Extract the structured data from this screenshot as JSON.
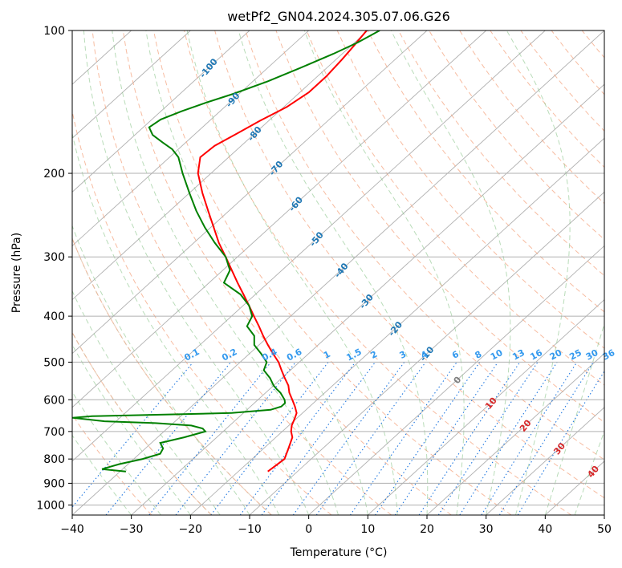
{
  "chart_data": {
    "type": "line",
    "subtype": "skew-t log-p diagram",
    "title": "wetPf2_GN04.2024.305.07.06.G26",
    "xlabel": "Temperature (°C)",
    "ylabel": "Pressure (hPa)",
    "xlim": [
      -40,
      50
    ],
    "ylim": [
      1050,
      100
    ],
    "y_scale": "log",
    "grid": true,
    "x_ticks": [
      -40,
      -30,
      -20,
      -10,
      0,
      10,
      20,
      30,
      40,
      50
    ],
    "y_ticks": [
      100,
      200,
      300,
      400,
      500,
      600,
      700,
      800,
      900,
      1000
    ],
    "isotherm_labels": [
      {
        "value": "-100",
        "color": "#1f77b4",
        "p": 120,
        "t_label": -100
      },
      {
        "value": "-90",
        "color": "#1f77b4",
        "p": 140,
        "t_label": -90
      },
      {
        "value": "-80",
        "color": "#1f77b4",
        "p": 165,
        "t_label": -80
      },
      {
        "value": "-70",
        "color": "#1f77b4",
        "p": 195,
        "t_label": -70
      },
      {
        "value": "-60",
        "color": "#1f77b4",
        "p": 232,
        "t_label": -60
      },
      {
        "value": "-50",
        "color": "#1f77b4",
        "p": 275,
        "t_label": -50
      },
      {
        "value": "-40",
        "color": "#1f77b4",
        "p": 320,
        "t_label": -40
      },
      {
        "value": "-30",
        "color": "#1f77b4",
        "p": 372,
        "t_label": -30
      },
      {
        "value": "-20",
        "color": "#1f77b4",
        "p": 425,
        "t_label": -20
      },
      {
        "value": "-10",
        "color": "#1f77b4",
        "p": 480,
        "t_label": -10
      },
      {
        "value": "0",
        "color": "#7f7f7f",
        "p": 545,
        "t_label": 0
      },
      {
        "value": "10",
        "color": "#d62728",
        "p": 610,
        "t_label": 10
      },
      {
        "value": "20",
        "color": "#d62728",
        "p": 680,
        "t_label": 20
      },
      {
        "value": "30",
        "color": "#d62728",
        "p": 760,
        "t_label": 30
      },
      {
        "value": "40",
        "color": "#d62728",
        "p": 850,
        "t_label": 40
      }
    ],
    "mixing_ratio_labels": [
      "0.1",
      "0.2",
      "0.4",
      "0.6",
      "1",
      "1.5",
      "2",
      "3",
      "4",
      "6",
      "8",
      "10",
      "13",
      "16",
      "20",
      "25",
      "30",
      "36"
    ],
    "series": [
      {
        "color": "#ff0000",
        "pressure": [
          850,
          830,
          800,
          760,
          720,
          700,
          680,
          660,
          640,
          620,
          600,
          580,
          560,
          540,
          520,
          500,
          480,
          460,
          440,
          420,
          400,
          380,
          360,
          340,
          320,
          300,
          280,
          260,
          240,
          220,
          200,
          185,
          175,
          165,
          155,
          145,
          135,
          125,
          115,
          108,
          100
        ],
        "temperature": [
          -15.0,
          -14.8,
          -14.5,
          -15.8,
          -17.2,
          -18.5,
          -19.5,
          -20.2,
          -21.0,
          -22.5,
          -24.2,
          -26.0,
          -27.5,
          -29.5,
          -31.5,
          -33.5,
          -36.0,
          -38.5,
          -41.0,
          -43.5,
          -46.2,
          -49.0,
          -52.0,
          -55.2,
          -58.5,
          -62.0,
          -65.8,
          -69.5,
          -73.5,
          -77.8,
          -82.2,
          -84.8,
          -84.5,
          -83.0,
          -81.5,
          -79.5,
          -78.5,
          -78.5,
          -79.0,
          -79.5,
          -80.2
        ]
      },
      {
        "color": "#008000",
        "pressure": [
          850,
          840,
          820,
          800,
          780,
          760,
          740,
          720,
          700,
          690,
          680,
          672,
          666,
          655,
          650,
          645,
          640,
          630,
          620,
          610,
          600,
          590,
          580,
          570,
          560,
          540,
          520,
          500,
          480,
          460,
          440,
          420,
          400,
          380,
          360,
          340,
          320,
          300,
          280,
          260,
          240,
          220,
          200,
          185,
          178,
          172,
          166,
          160,
          154,
          148,
          142,
          136,
          128,
          120,
          112,
          106,
          100
        ],
        "temperature": [
          -39.0,
          -43.5,
          -41.5,
          -38.5,
          -36.5,
          -37.0,
          -38.5,
          -35.5,
          -33.0,
          -34.0,
          -36.5,
          -43.0,
          -52.0,
          -58.0,
          -55.0,
          -43.0,
          -32.0,
          -26.0,
          -24.8,
          -24.8,
          -25.5,
          -26.5,
          -27.5,
          -28.8,
          -30.0,
          -32.0,
          -34.5,
          -35.5,
          -38.0,
          -40.8,
          -42.5,
          -45.5,
          -46.5,
          -49.0,
          -52.5,
          -57.5,
          -58.8,
          -62.0,
          -66.5,
          -71.0,
          -75.5,
          -80.0,
          -84.8,
          -88.5,
          -91.0,
          -94.0,
          -97.0,
          -99.0,
          -98.5,
          -96.5,
          -94.0,
          -91.0,
          -87.5,
          -84.5,
          -81.5,
          -79.5,
          -78.0
        ]
      }
    ]
  }
}
